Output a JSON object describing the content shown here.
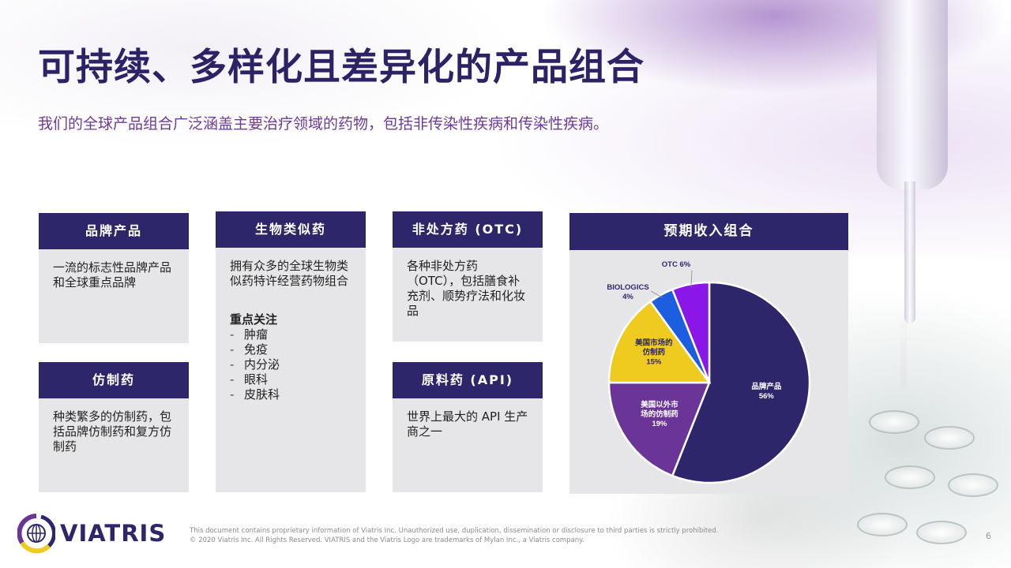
{
  "title": "可持续、多样化且差异化的产品组合",
  "subtitle": "我们的全球产品组合广泛涵盖主要治疗领域的药物，包括非传染性疾病和传染性疾病。",
  "cards": {
    "branded": {
      "title": "品牌产品",
      "body": "一流的标志性品牌产品和全球重点品牌"
    },
    "generics": {
      "title": "仿制药",
      "body": "种类繁多的仿制药，包括品牌仿制药和复方仿制药"
    },
    "biosimilars": {
      "title": "生物类似药",
      "body": "拥有众多的全球生物类似药特许经营药物组合",
      "focus_title": "重点关注",
      "focus_items": [
        "肿瘤",
        "免疫",
        "内分泌",
        "眼科",
        "皮肤科"
      ]
    },
    "otc": {
      "title": "非处方药 (OTC)",
      "body": "各种非处方药（OTC），包括膳食补充剂、顺势疗法和化妆品"
    },
    "api": {
      "title": "原料药 (API)",
      "body": "世界上最大的 API 生产商之一"
    }
  },
  "chart_data": {
    "type": "pie",
    "title": "预期收入组合",
    "slices": [
      {
        "label": "品牌产品",
        "value": 56,
        "color": "#2e266b"
      },
      {
        "label": "美国以外市场的仿制药",
        "value": 19,
        "color": "#6b3597"
      },
      {
        "label": "美国市场的仿制药",
        "value": 15,
        "color": "#f0cb1f"
      },
      {
        "label": "BIOLOGICS",
        "value": 4,
        "color": "#1b5fe0"
      },
      {
        "label": "OTC",
        "value": 6,
        "color": "#8a16e8"
      }
    ],
    "value_suffix": "%"
  },
  "logo": {
    "text": "VIATRIS"
  },
  "footer": {
    "line1": "This document contains proprietary information of Viatris Inc. Unauthorized use, duplication, dissemination or disclosure to third parties is strictly prohibited.",
    "line2": "© 2020 Viatris Inc. All Rights Reserved. VIATRIS and the Viatris Logo are trademarks of Mylan Inc., a Viatris company.",
    "page_number": "6"
  }
}
